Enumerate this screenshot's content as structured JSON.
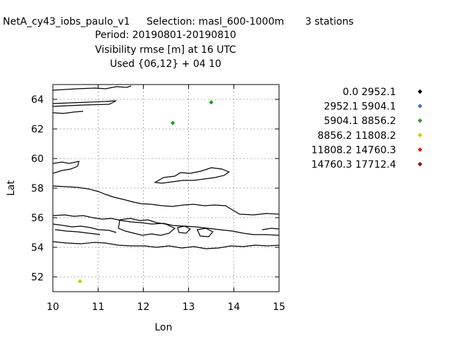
{
  "titles": {
    "line1_model": "NetA_cy43_iobs_paulo_v1",
    "line1_selection": "Selection: masl_600-1000m",
    "line1_stations": "3 stations",
    "line2": "Period: 20190801-20190810",
    "line3": "Visibility rmse [m] at  16 UTC",
    "line4": "Used {06,12} + 04 10"
  },
  "chart_data": {
    "type": "scatter",
    "xlabel": "Lon",
    "ylabel": "Lat",
    "xlim": [
      10,
      15
    ],
    "ylim": [
      51,
      65
    ],
    "xticks": [
      "10",
      "11",
      "12",
      "13",
      "14",
      "15"
    ],
    "yticks": [
      "52",
      "54",
      "56",
      "58",
      "60",
      "62",
      "64"
    ],
    "grid": true,
    "legend_position": "right",
    "legend": [
      {
        "label": "0.0 2952.1",
        "color": "#000000"
      },
      {
        "label": "2952.1 5904.1",
        "color": "#3a6fd8"
      },
      {
        "label": "5904.1 8856.2",
        "color": "#1aa81a"
      },
      {
        "label": "8856.2 11808.2",
        "color": "#cccc00"
      },
      {
        "label": "11808.2 14760.3",
        "color": "#ee1111"
      },
      {
        "label": "14760.3 17712.4",
        "color": "#8b1010"
      }
    ],
    "points": [
      {
        "x": 13.5,
        "y": 63.8,
        "class": 2
      },
      {
        "x": 12.65,
        "y": 62.4,
        "class": 2
      },
      {
        "x": 10.6,
        "y": 51.7,
        "class": 3
      }
    ]
  }
}
